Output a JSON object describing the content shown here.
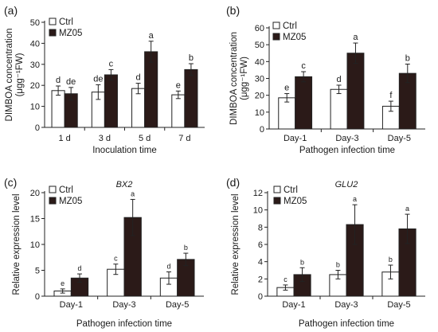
{
  "chart_data": [
    {
      "id": "panel-a",
      "type": "bar",
      "panel_label": "(a)",
      "title": "",
      "xlabel": "Inoculation time",
      "ylabel": "DIMBOA concentration (μgg⁻¹FW)",
      "ylabel_lines": [
        "DIMBOA concentration",
        "(μgg⁻¹FW)"
      ],
      "ylim": [
        0,
        50
      ],
      "yticks": [
        0,
        10,
        20,
        30,
        40,
        50
      ],
      "categories": [
        "1 d",
        "3 d",
        "5 d",
        "7 d"
      ],
      "series": [
        {
          "name": "Ctrl",
          "color": "#ffffff",
          "values": [
            17.5,
            16.8,
            18.5,
            15.5
          ],
          "errors": [
            2.2,
            3.5,
            2.5,
            1.8
          ],
          "labels": [
            "d",
            "de",
            "d",
            "e"
          ]
        },
        {
          "name": "MZ05",
          "color": "#2b1a18",
          "values": [
            16.0,
            25.0,
            36.0,
            27.5
          ],
          "errors": [
            3.0,
            2.5,
            5.0,
            2.8
          ],
          "labels": [
            "de",
            "c",
            "a",
            "b"
          ]
        }
      ],
      "legend": "top-left",
      "grid": false
    },
    {
      "id": "panel-b",
      "type": "bar",
      "panel_label": "(b)",
      "title": "",
      "xlabel": "Pathogen infection time",
      "ylabel": "DIMBOA concentration (μgg⁻¹FW)",
      "ylabel_lines": [
        "DIMBOA concentration",
        "(μgg⁻¹FW)"
      ],
      "ylim": [
        0,
        60
      ],
      "yticks": [
        0,
        10,
        20,
        30,
        40,
        50,
        60
      ],
      "categories": [
        "Day-1",
        "Day-3",
        "Day-5"
      ],
      "series": [
        {
          "name": "Ctrl",
          "color": "#ffffff",
          "values": [
            18.5,
            23.5,
            13.5
          ],
          "errors": [
            2.5,
            2.5,
            3.0
          ],
          "labels": [
            "e",
            "d",
            "f"
          ]
        },
        {
          "name": "MZ05",
          "color": "#2b1a18",
          "values": [
            31.0,
            45.0,
            33.0
          ],
          "errors": [
            3.0,
            6.0,
            5.5
          ],
          "labels": [
            "c",
            "a",
            "b"
          ]
        }
      ],
      "legend": "top-left",
      "grid": false
    },
    {
      "id": "panel-c",
      "type": "bar",
      "panel_label": "(c)",
      "title": "BX2",
      "xlabel": "Pathogen infection time",
      "ylabel": "Relative expression level",
      "ylabel_lines": [
        "Relative expression level"
      ],
      "ylim": [
        0,
        20
      ],
      "yticks": [
        0,
        5,
        10,
        15,
        20
      ],
      "categories": [
        "Day-1",
        "Day-3",
        "Day-5"
      ],
      "series": [
        {
          "name": "Ctrl",
          "color": "#ffffff",
          "values": [
            1.0,
            5.2,
            3.5
          ],
          "errors": [
            0.4,
            1.0,
            1.2
          ],
          "labels": [
            "e",
            "c",
            "d"
          ]
        },
        {
          "name": "MZ05",
          "color": "#2b1a18",
          "values": [
            3.5,
            15.2,
            7.1
          ],
          "errors": [
            0.8,
            3.5,
            1.2
          ],
          "labels": [
            "d",
            "a",
            "b"
          ]
        }
      ],
      "legend": "top-left",
      "grid": false
    },
    {
      "id": "panel-d",
      "type": "bar",
      "panel_label": "(d)",
      "title": "GLU2",
      "xlabel": "Pathogen infection time",
      "ylabel": "Relative expression level",
      "ylabel_lines": [
        "Relative expression level"
      ],
      "ylim": [
        0,
        12
      ],
      "yticks": [
        0,
        2,
        4,
        6,
        8,
        10,
        12
      ],
      "categories": [
        "Day-1",
        "Day-3",
        "Day-5"
      ],
      "series": [
        {
          "name": "Ctrl",
          "color": "#ffffff",
          "values": [
            1.0,
            2.5,
            2.8
          ],
          "errors": [
            0.3,
            0.5,
            0.8
          ],
          "labels": [
            "c",
            "b",
            "b"
          ]
        },
        {
          "name": "MZ05",
          "color": "#2b1a18",
          "values": [
            2.5,
            8.3,
            7.8
          ],
          "errors": [
            0.8,
            2.3,
            1.7
          ],
          "labels": [
            "b",
            "a",
            "a"
          ]
        }
      ],
      "legend": "top-left",
      "grid": false
    }
  ]
}
